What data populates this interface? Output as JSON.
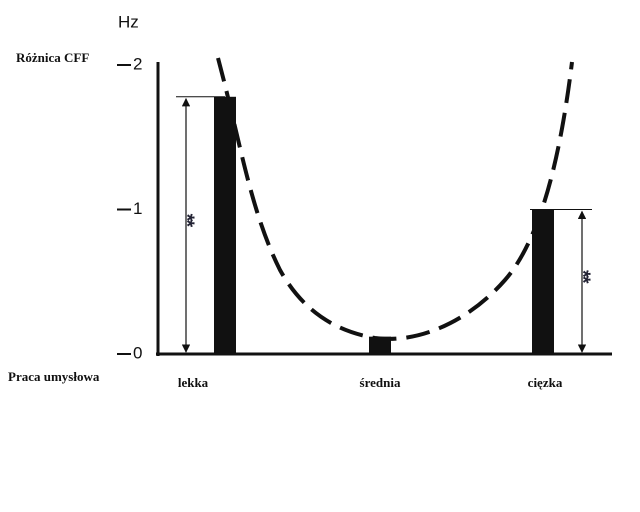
{
  "chart_data": {
    "type": "bar",
    "unit": "Hz",
    "y_label": "Różnica CFF",
    "x_label": "Praca umysłowa",
    "categories": [
      "lekka",
      "średnia",
      "cięzka"
    ],
    "values": [
      1.78,
      0.12,
      1.0
    ],
    "color": "#111111",
    "ylim": [
      0,
      2
    ],
    "yticks": [
      0,
      1,
      2
    ],
    "annotations": [
      "**",
      "**"
    ]
  }
}
